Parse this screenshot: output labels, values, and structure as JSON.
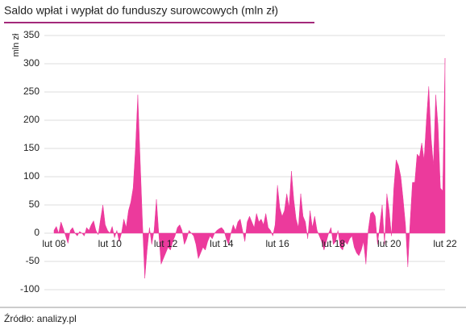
{
  "chart_data": {
    "type": "area",
    "title": "Saldo wpłat i wypłat do funduszy surowcowych (mln zł)",
    "y_label": "mln zł",
    "source": "Źródło: analizy.pl",
    "color": "#ec3a9c",
    "grid": true,
    "ylim": [
      -100,
      350
    ],
    "yticks": [
      -100,
      -50,
      0,
      50,
      100,
      150,
      200,
      250,
      300,
      350
    ],
    "categories": [
      "lut 08",
      null,
      null,
      null,
      null,
      null,
      null,
      null,
      null,
      null,
      null,
      null,
      null,
      null,
      null,
      null,
      null,
      null,
      null,
      null,
      null,
      null,
      null,
      null,
      "lut 10",
      null,
      null,
      null,
      null,
      null,
      null,
      null,
      null,
      null,
      null,
      null,
      null,
      null,
      null,
      null,
      null,
      null,
      null,
      null,
      null,
      null,
      null,
      null,
      "lut 12",
      null,
      null,
      null,
      null,
      null,
      null,
      null,
      null,
      null,
      null,
      null,
      null,
      null,
      null,
      null,
      null,
      null,
      null,
      null,
      null,
      null,
      null,
      null,
      "lut 14",
      null,
      null,
      null,
      null,
      null,
      null,
      null,
      null,
      null,
      null,
      null,
      null,
      null,
      null,
      null,
      null,
      null,
      null,
      null,
      null,
      null,
      null,
      null,
      "lut 16",
      null,
      null,
      null,
      null,
      null,
      null,
      null,
      null,
      null,
      null,
      null,
      null,
      null,
      null,
      null,
      null,
      null,
      null,
      null,
      null,
      null,
      null,
      null,
      "lut 18",
      null,
      null,
      null,
      null,
      null,
      null,
      null,
      null,
      null,
      null,
      null,
      null,
      null,
      null,
      null,
      null,
      null,
      null,
      null,
      null,
      null,
      null,
      null,
      "lut 20",
      null,
      null,
      null,
      null,
      null,
      null,
      null,
      null,
      null,
      null,
      null,
      null,
      null,
      null,
      null,
      null,
      null,
      null,
      null,
      null,
      null,
      null,
      null,
      "lut 22"
    ],
    "values": [
      5,
      12,
      0,
      20,
      8,
      -5,
      -18,
      5,
      10,
      0,
      -5,
      3,
      0,
      -5,
      10,
      5,
      15,
      22,
      5,
      -3,
      25,
      50,
      15,
      5,
      0,
      12,
      -8,
      5,
      -15,
      0,
      25,
      10,
      40,
      55,
      80,
      150,
      245,
      130,
      20,
      -80,
      -30,
      10,
      -20,
      5,
      60,
      0,
      -55,
      -45,
      -35,
      -25,
      -30,
      -15,
      -5,
      10,
      15,
      5,
      -20,
      -10,
      5,
      0,
      -5,
      -20,
      -45,
      -35,
      -25,
      -30,
      -15,
      -5,
      -10,
      0,
      5,
      8,
      10,
      5,
      -10,
      -20,
      0,
      15,
      5,
      20,
      25,
      5,
      -15,
      20,
      30,
      20,
      10,
      35,
      20,
      25,
      15,
      35,
      10,
      5,
      -5,
      15,
      85,
      45,
      30,
      40,
      70,
      45,
      110,
      60,
      25,
      10,
      70,
      30,
      20,
      -10,
      40,
      10,
      30,
      5,
      -5,
      -15,
      -30,
      -15,
      0,
      10,
      -20,
      -15,
      5,
      -25,
      -30,
      -15,
      -20,
      -10,
      -5,
      -25,
      -35,
      -40,
      -30,
      -15,
      -55,
      5,
      35,
      38,
      30,
      -20,
      15,
      50,
      -20,
      70,
      40,
      -5,
      80,
      130,
      120,
      100,
      60,
      15,
      -60,
      20,
      90,
      90,
      140,
      135,
      160,
      130,
      200,
      260,
      170,
      120,
      245,
      190,
      80,
      75,
      310
    ]
  }
}
